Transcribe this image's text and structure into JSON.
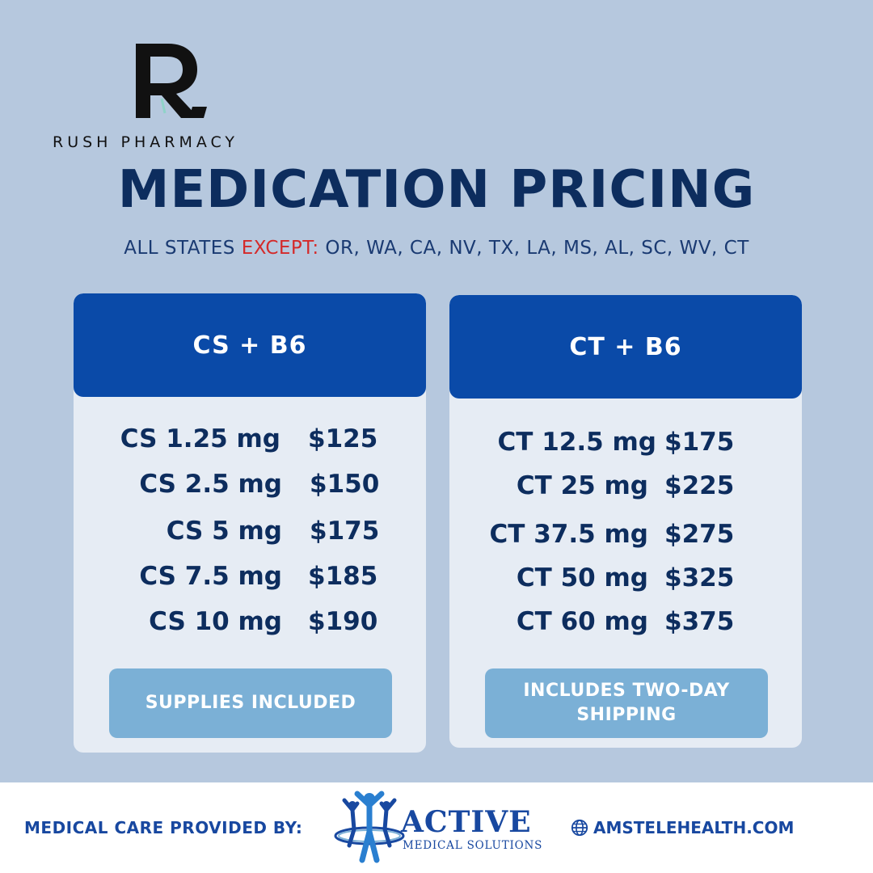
{
  "brand": {
    "name": "RUSH PHARMACY",
    "logo_letter": "R"
  },
  "title": "MEDICATION PRICING",
  "subtitle": {
    "prefix": "ALL STATES ",
    "except_word": "EXCEPT:",
    "states": " OR, WA, CA, NV, TX,  LA, MS, AL, SC, WV, CT"
  },
  "cards": [
    {
      "header": "CS + B6",
      "rows": [
        {
          "dose": "CS 1.25 mg",
          "price": "$125"
        },
        {
          "dose": "CS 2.5 mg",
          "price": "$150"
        },
        {
          "dose": "CS 5 mg",
          "price": "$175"
        },
        {
          "dose": "CS 7.5 mg",
          "price": "$185"
        },
        {
          "dose": "CS 10 mg",
          "price": "$190"
        }
      ],
      "note": "SUPPLIES INCLUDED"
    },
    {
      "header": "CT + B6",
      "rows": [
        {
          "dose": "CT 12.5 mg",
          "price": "$175"
        },
        {
          "dose": "CT 25 mg",
          "price": "$225"
        },
        {
          "dose": "CT 37.5 mg",
          "price": "$275"
        },
        {
          "dose": "CT 50 mg",
          "price": "$325"
        },
        {
          "dose": "CT 60 mg",
          "price": "$375"
        }
      ],
      "note": "INCLUDES TWO-DAY SHIPPING"
    }
  ],
  "footer": {
    "provided_by": "MEDICAL CARE PROVIDED BY:",
    "partner_name": "ACTIVE",
    "partner_sub": "MEDICAL SOLUTIONS",
    "website": "AMSTELEHEALTH.COM",
    "website_icon": "globe-icon"
  },
  "colors": {
    "background": "#b6c8de",
    "navy": "#0d2d5e",
    "header_blue": "#0a4aa8",
    "accent_red": "#d42a2a",
    "pill_blue": "#7bb0d6",
    "footer_blue": "#1848a0"
  }
}
